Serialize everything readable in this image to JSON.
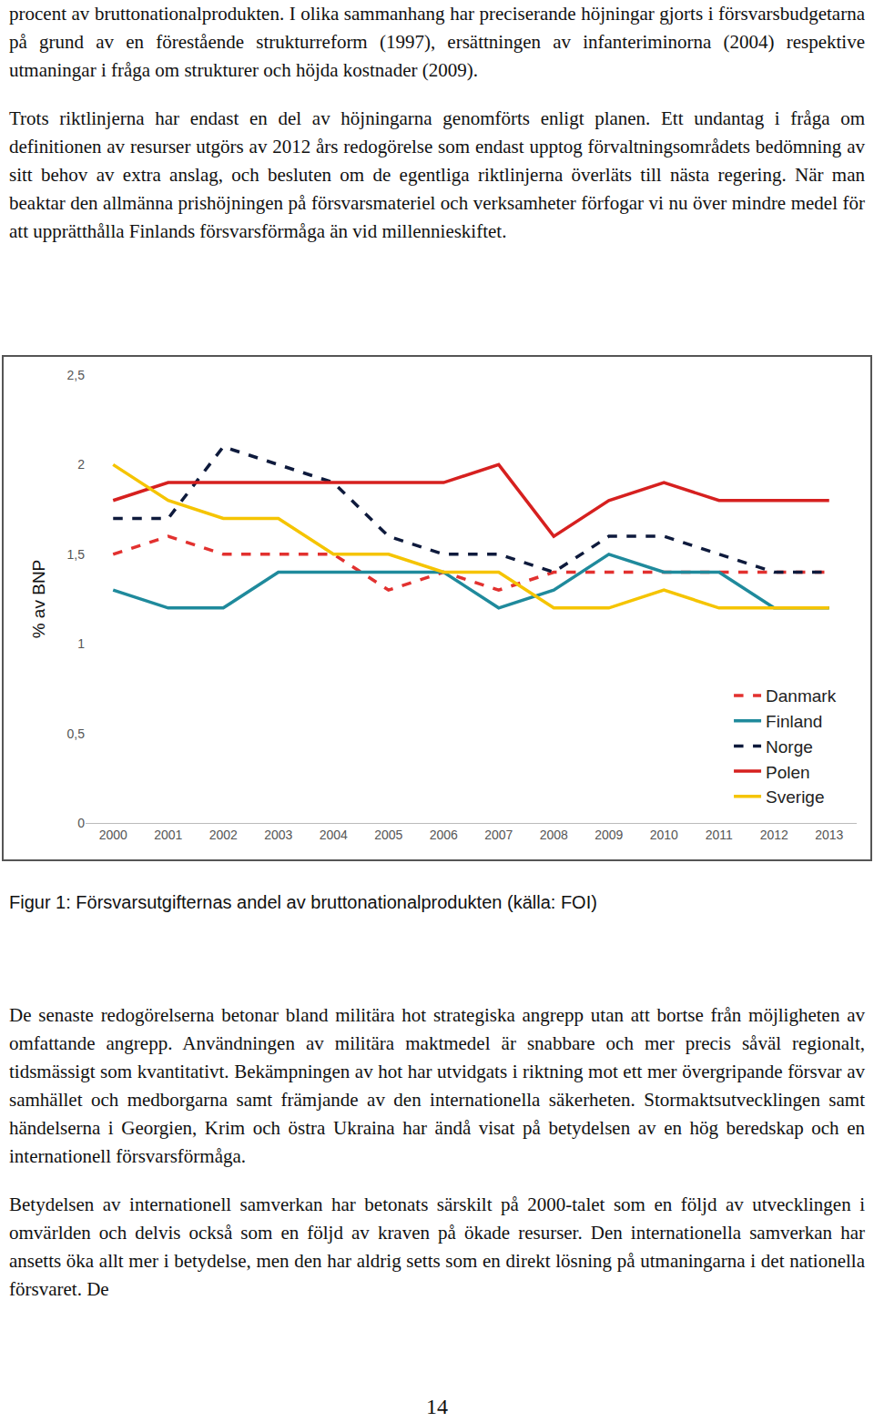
{
  "document": {
    "top_paragraphs": [
      "procent av bruttonationalprodukten. I olika sammanhang har preciserande höjningar gjorts i försvarsbudgetarna på grund av en förestående strukturreform (1997), ersättningen av infanteriminorna (2004) respektive utmaningar i fråga om strukturer och höjda kostnader (2009).",
      "Trots riktlinjerna har endast en del av höjningarna genomförts enligt planen. Ett undantag i fråga om definitionen av resurser utgörs av 2012 års redogörelse som endast upptog förvaltningsområdets bedömning av sitt behov av extra anslag, och besluten om de egentliga riktlinjerna överläts till nästa regering. När man beaktar den allmänna prishöjningen på försvarsmateriel och verksamheter förfogar vi nu över mindre medel för att upprätthålla Finlands försvarsförmåga än vid millennieskiftet."
    ],
    "caption": "Figur 1: Försvarsutgifternas andel av bruttonationalprodukten (källa: FOI)",
    "bottom_paragraphs": [
      "De senaste redogörelserna betonar bland militära hot strategiska angrepp utan att bortse från möjligheten av omfattande angrepp. Användningen av militära maktmedel är snabbare och mer precis såväl regionalt, tidsmässigt som kvantitativt. Bekämpningen av hot har utvidgats i riktning mot ett mer övergripande försvar av samhället och medborgarna samt främjande av den internationella säkerheten. Stormaktsutvecklingen samt händelserna i Georgien, Krim och östra Ukraina har ändå visat på betydelsen av en hög beredskap och en internationell försvarsförmåga.",
      "Betydelsen av internationell samverkan har betonats särskilt på 2000-talet som en följd av utvecklingen i omvärlden och delvis också som en följd av kraven på ökade resurser. Den internationella samverkan har ansetts öka allt mer i betydelse, men den har aldrig setts som en direkt lösning på utmaningarna i det nationella försvaret. De"
    ],
    "page_number": "14"
  },
  "chart_data": {
    "type": "line",
    "y_label": "% av BNP",
    "x": [
      2000,
      2001,
      2002,
      2003,
      2004,
      2005,
      2006,
      2007,
      2008,
      2009,
      2010,
      2011,
      2012,
      2013
    ],
    "xlim": [
      1999.5,
      2013.5
    ],
    "xticks": [
      2000,
      2001,
      2002,
      2003,
      2004,
      2005,
      2006,
      2007,
      2008,
      2009,
      2010,
      2011,
      2012,
      2013
    ],
    "ylim": [
      0,
      2.5
    ],
    "yticks": [
      0,
      {
        "value": 0.5,
        "label": "0,5"
      },
      1,
      {
        "value": 1.5,
        "label": "1,5"
      },
      2,
      {
        "value": 2.5,
        "label": "2,5"
      }
    ],
    "grid": false,
    "legend": "bottom-right",
    "series": [
      {
        "name": "Danmark",
        "color": "#e2312f",
        "line_style": "dash",
        "values": [
          1.5,
          1.6,
          1.5,
          1.5,
          1.5,
          1.3,
          1.4,
          1.3,
          1.4,
          1.4,
          1.4,
          1.4,
          1.4,
          1.4
        ]
      },
      {
        "name": "Finland",
        "color": "#1f8a9c",
        "line_style": "solid",
        "values": [
          1.3,
          1.2,
          1.2,
          1.4,
          1.4,
          1.4,
          1.4,
          1.2,
          1.3,
          1.5,
          1.4,
          1.4,
          1.2,
          1.2
        ]
      },
      {
        "name": "Norge",
        "color": "#0e1a3c",
        "line_style": "dash",
        "values": [
          1.7,
          1.7,
          2.1,
          2.0,
          1.9,
          1.6,
          1.5,
          1.5,
          1.4,
          1.6,
          1.6,
          1.5,
          1.4,
          1.4
        ]
      },
      {
        "name": "Polen",
        "color": "#d6201f",
        "line_style": "solid",
        "values": [
          1.8,
          1.9,
          1.9,
          1.9,
          1.9,
          1.9,
          1.9,
          2.0,
          1.6,
          1.8,
          1.9,
          1.8,
          1.8,
          1.8
        ]
      },
      {
        "name": "Sverige",
        "color": "#f5c400",
        "line_style": "solid",
        "values": [
          2.0,
          1.8,
          1.7,
          1.7,
          1.5,
          1.5,
          1.4,
          1.4,
          1.2,
          1.2,
          1.3,
          1.2,
          1.2,
          1.2
        ]
      }
    ]
  }
}
